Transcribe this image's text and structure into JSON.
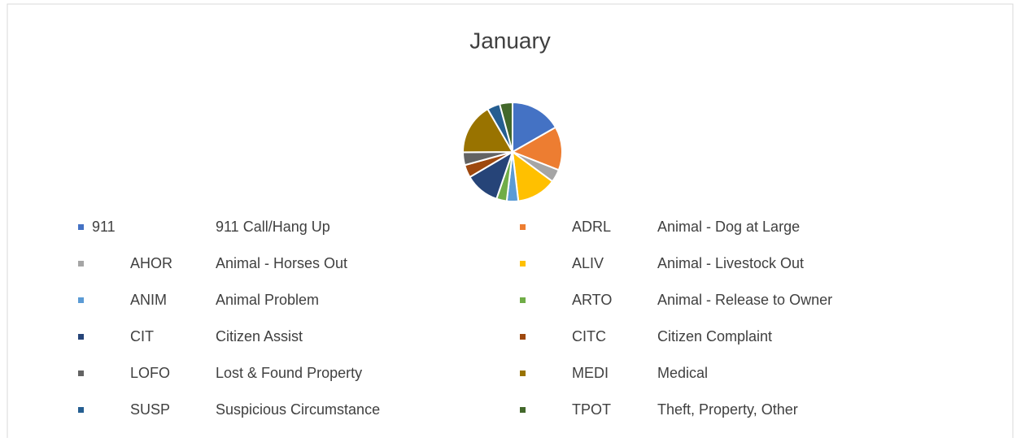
{
  "chart_data": {
    "type": "pie",
    "title": "January",
    "categories": [
      "911",
      "ADRL",
      "AHOR",
      "ALIV",
      "ANIM",
      "ARTO",
      "CIT",
      "CITC",
      "LOFO",
      "MEDI",
      "SUSP",
      "TPOT"
    ],
    "descriptions": [
      "911 Call/Hang Up",
      "Animal - Dog at Large",
      "Animal - Horses Out",
      "Animal - Livestock Out",
      "Animal Problem",
      "Animal - Release to Owner",
      "Citizen Assist",
      "Citizen Complaint",
      "Lost & Found Property",
      "Medical",
      "Suspicious Circumstance",
      "Theft, Property, Other"
    ],
    "values": [
      4,
      3.4,
      1,
      3.1,
      0.9,
      0.8,
      2.7,
      1,
      1,
      4,
      1,
      1
    ],
    "colors": [
      "#4472c4",
      "#ed7d31",
      "#a5a5a5",
      "#ffc000",
      "#5b9bd5",
      "#70ad47",
      "#264478",
      "#9e480e",
      "#636363",
      "#997300",
      "#255e91",
      "#43682b"
    ],
    "legend": "bottom"
  }
}
